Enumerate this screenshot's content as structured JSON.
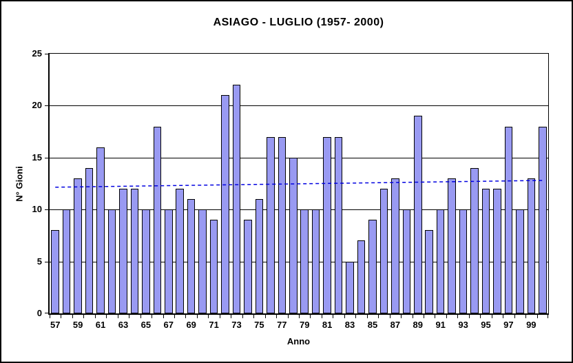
{
  "figure": {
    "title": "ASIAGO - LUGLIO (1957- 2000)",
    "xlabel": "Anno",
    "ylabel": "N° Gioni"
  },
  "chart_data": {
    "type": "bar",
    "title": "ASIAGO - LUGLIO (1957- 2000)",
    "xlabel": "Anno",
    "ylabel": "N° Gioni",
    "categories": [
      "57",
      "58",
      "59",
      "60",
      "61",
      "62",
      "63",
      "64",
      "65",
      "66",
      "67",
      "68",
      "69",
      "70",
      "71",
      "72",
      "73",
      "74",
      "75",
      "76",
      "77",
      "78",
      "79",
      "80",
      "81",
      "82",
      "83",
      "84",
      "85",
      "86",
      "87",
      "88",
      "89",
      "90",
      "91",
      "92",
      "93",
      "94",
      "95",
      "96",
      "97",
      "98",
      "99",
      "00"
    ],
    "values": [
      8,
      10,
      13,
      14,
      16,
      10,
      12,
      12,
      10,
      18,
      10,
      12,
      11,
      10,
      9,
      21,
      22,
      9,
      11,
      17,
      17,
      15,
      10,
      10,
      17,
      17,
      5,
      7,
      9,
      12,
      13,
      10,
      19,
      8,
      10,
      13,
      10,
      14,
      12,
      12,
      18,
      10,
      13,
      18
    ],
    "xtick_labels_shown": [
      "57",
      "59",
      "61",
      "63",
      "65",
      "67",
      "69",
      "71",
      "73",
      "75",
      "77",
      "79",
      "81",
      "83",
      "85",
      "87",
      "89",
      "91",
      "93",
      "95",
      "97",
      "99"
    ],
    "yticks": [
      0,
      5,
      10,
      15,
      20,
      25
    ],
    "ylim": [
      0,
      25
    ],
    "ytick_interval": 5,
    "grid": "horizontal",
    "legend": "none",
    "trendline": {
      "type": "linear",
      "style": "dashed",
      "start_value": 12.15,
      "end_value": 12.8
    }
  },
  "colors": {
    "bar_fill": "#999af2",
    "bar_border": "#000000",
    "axis": "#000000",
    "trend": "#0000e0",
    "background": "#ffffff"
  }
}
